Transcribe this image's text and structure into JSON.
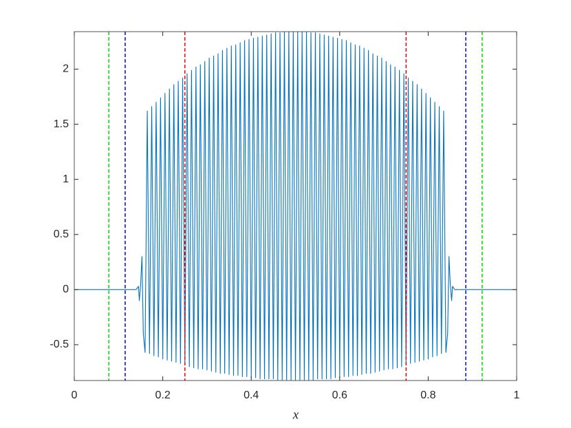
{
  "chart_data": {
    "type": "line",
    "xlabel": "x",
    "color": "#0072bd",
    "xlim": [
      0,
      1
    ],
    "ylim": [
      -0.825,
      2.34
    ],
    "xticks": [
      0,
      0.2,
      0.4,
      0.6,
      0.8,
      1
    ],
    "yticks": [
      -0.5,
      0,
      0.5,
      1,
      1.5,
      2
    ],
    "x": [
      0,
      0.14,
      0.145,
      0.147,
      0.15,
      0.153,
      0.156,
      0.16,
      0.165,
      0.17,
      0.175,
      0.18,
      0.185,
      0.19,
      0.195,
      0.2,
      0.205,
      0.21,
      0.215,
      0.22,
      0.225,
      0.23,
      0.235,
      0.24,
      0.245,
      0.25,
      0.255,
      0.26,
      0.265,
      0.27,
      0.275,
      0.28,
      0.285,
      0.29,
      0.295,
      0.3,
      0.305,
      0.31,
      0.315,
      0.32,
      0.325,
      0.33,
      0.335,
      0.34,
      0.345,
      0.35,
      0.355,
      0.36,
      0.365,
      0.37,
      0.375,
      0.38,
      0.385,
      0.39,
      0.395,
      0.4,
      0.405,
      0.41,
      0.415,
      0.42,
      0.425,
      0.43,
      0.435,
      0.44,
      0.445,
      0.45,
      0.455,
      0.46,
      0.465,
      0.47,
      0.475,
      0.48,
      0.485,
      0.49,
      0.495,
      0.5,
      0.505,
      0.51,
      0.515,
      0.52,
      0.525,
      0.53,
      0.535,
      0.54,
      0.545,
      0.55,
      0.555,
      0.56,
      0.565,
      0.57,
      0.575,
      0.58,
      0.585,
      0.59,
      0.595,
      0.6,
      0.605,
      0.61,
      0.615,
      0.62,
      0.625,
      0.63,
      0.635,
      0.64,
      0.645,
      0.65,
      0.655,
      0.66,
      0.665,
      0.67,
      0.675,
      0.68,
      0.685,
      0.69,
      0.695,
      0.7,
      0.705,
      0.71,
      0.715,
      0.72,
      0.725,
      0.73,
      0.735,
      0.74,
      0.745,
      0.75,
      0.755,
      0.76,
      0.765,
      0.77,
      0.775,
      0.78,
      0.785,
      0.79,
      0.795,
      0.8,
      0.805,
      0.81,
      0.815,
      0.82,
      0.825,
      0.83,
      0.835,
      0.84,
      0.844,
      0.847,
      0.85,
      0.853,
      0.855,
      0.86,
      1
    ],
    "values": [
      0,
      0,
      0.03,
      -0.1,
      0.05,
      0.3,
      -0.4,
      -0.57,
      1.62,
      -0.58,
      1.66,
      -0.6,
      1.7,
      -0.61,
      1.74,
      -0.63,
      1.78,
      -0.64,
      1.82,
      -0.65,
      1.86,
      -0.66,
      1.89,
      -0.67,
      1.92,
      -0.68,
      1.96,
      -0.7,
      1.99,
      -0.71,
      2.02,
      -0.72,
      2.04,
      -0.72,
      2.07,
      -0.73,
      2.1,
      -0.74,
      2.12,
      -0.75,
      2.14,
      -0.76,
      2.17,
      -0.76,
      2.19,
      -0.77,
      2.21,
      -0.78,
      2.22,
      -0.78,
      2.24,
      -0.79,
      2.26,
      -0.79,
      2.27,
      -0.8,
      2.28,
      -0.8,
      2.29,
      -0.81,
      2.3,
      -0.81,
      2.31,
      -0.81,
      2.32,
      -0.81,
      2.33,
      -0.82,
      2.33,
      -0.82,
      2.34,
      -0.82,
      2.34,
      -0.82,
      2.34,
      -0.82,
      2.34,
      -0.82,
      2.34,
      -0.82,
      2.34,
      -0.82,
      2.33,
      -0.82,
      2.33,
      -0.81,
      2.32,
      -0.81,
      2.31,
      -0.81,
      2.3,
      -0.81,
      2.29,
      -0.8,
      2.28,
      -0.8,
      2.27,
      -0.79,
      2.26,
      -0.79,
      2.24,
      -0.78,
      2.22,
      -0.78,
      2.21,
      -0.77,
      2.19,
      -0.76,
      2.17,
      -0.76,
      2.14,
      -0.75,
      2.12,
      -0.74,
      2.1,
      -0.73,
      2.07,
      -0.72,
      2.04,
      -0.72,
      2.02,
      -0.71,
      1.99,
      -0.7,
      1.96,
      -0.68,
      1.92,
      -0.67,
      1.89,
      -0.66,
      1.86,
      -0.65,
      1.82,
      -0.64,
      1.78,
      -0.63,
      1.74,
      -0.61,
      1.7,
      -0.6,
      1.66,
      -0.58,
      1.62,
      -0.57,
      -0.4,
      0.3,
      0.05,
      -0.1,
      0.03,
      0,
      0
    ],
    "vlines": [
      {
        "x": 0.078,
        "color": "#00dd00"
      },
      {
        "x": 0.115,
        "color": "#0000ff"
      },
      {
        "x": 0.25,
        "color": "#ff0000"
      },
      {
        "x": 0.75,
        "color": "#ff0000"
      },
      {
        "x": 0.885,
        "color": "#0000ff"
      },
      {
        "x": 0.922,
        "color": "#00dd00"
      }
    ]
  }
}
